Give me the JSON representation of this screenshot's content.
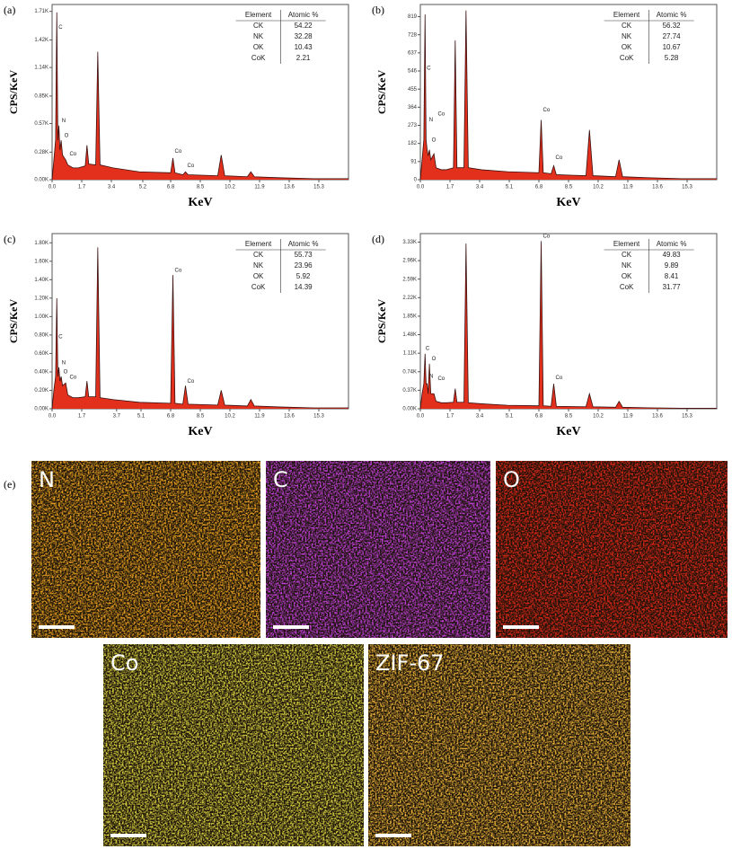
{
  "chart_data": [
    {
      "type": "area",
      "label": "(a)",
      "x_label": "KeV",
      "y_label": "CPS/KeV",
      "xlim": [
        0,
        17
      ],
      "xticks": [
        {
          "value": 0,
          "label": "0.0"
        },
        1.7,
        3.4,
        5.2,
        6.8,
        8.5,
        10.2,
        11.9,
        13.6,
        15.3
      ],
      "ylim": [
        0,
        1.78
      ],
      "yticks": [
        {
          "value": 0,
          "label": "0.00K"
        },
        {
          "value": 0.28,
          "label": "0.28K"
        },
        {
          "value": 0.57,
          "label": "0.57K"
        },
        {
          "value": 0.85,
          "label": "0.85K"
        },
        {
          "value": 1.14,
          "label": "1.14K"
        },
        {
          "value": 1.42,
          "label": "1.42K"
        },
        {
          "value": 1.71,
          "label": "1.71K"
        }
      ],
      "x": [
        0,
        0.1,
        0.2,
        0.27,
        0.33,
        0.39,
        0.45,
        0.52,
        0.6,
        0.78,
        0.9,
        1.2,
        1.5,
        1.9,
        2.0,
        2.1,
        2.5,
        2.62,
        2.75,
        3.5,
        5.0,
        6.8,
        6.93,
        7.05,
        7.5,
        7.65,
        7.8,
        9.5,
        9.7,
        9.9,
        11.2,
        11.4,
        11.6,
        13.0,
        15.0,
        17.0
      ],
      "series": [
        {
          "color": "#e2301c",
          "values": [
            0,
            0.2,
            0.4,
            1.7,
            0.4,
            0.55,
            0.3,
            0.4,
            0.25,
            0.2,
            0.15,
            0.12,
            0.12,
            0.14,
            0.35,
            0.16,
            0.15,
            1.3,
            0.15,
            0.12,
            0.08,
            0.07,
            0.22,
            0.07,
            0.05,
            0.08,
            0.05,
            0.04,
            0.25,
            0.04,
            0.03,
            0.08,
            0.03,
            0.02,
            0.01,
            0.01
          ]
        }
      ],
      "annotations": [
        {
          "text": "C",
          "x": 0.27,
          "y": 1.55
        },
        {
          "text": "N",
          "x": 0.45,
          "y": 0.6
        },
        {
          "text": "O",
          "x": 0.6,
          "y": 0.45
        },
        {
          "text": "Co",
          "x": 0.9,
          "y": 0.26
        },
        {
          "text": "Co",
          "x": 6.93,
          "y": 0.29
        },
        {
          "text": "Co",
          "x": 7.65,
          "y": 0.14
        }
      ],
      "table": {
        "columns": [
          "Element",
          "Atomic %"
        ],
        "rows": [
          [
            "CK",
            54.22
          ],
          [
            "NK",
            32.28
          ],
          [
            "OK",
            10.43
          ],
          [
            "CoK",
            2.21
          ]
        ]
      }
    },
    {
      "type": "area",
      "label": "(b)",
      "x_label": "KeV",
      "y_label": "CPS/KeV",
      "xlim": [
        0,
        17
      ],
      "xticks": [
        {
          "value": 0,
          "label": "0.0"
        },
        1.7,
        3.4,
        5.1,
        6.8,
        8.5,
        10.2,
        11.9,
        13.6,
        15.3
      ],
      "ylim": [
        0,
        880
      ],
      "yticks": [
        0,
        91,
        182,
        273,
        364,
        455,
        546,
        637,
        728,
        819
      ],
      "x": [
        0,
        0.1,
        0.2,
        0.27,
        0.33,
        0.39,
        0.45,
        0.52,
        0.6,
        0.78,
        0.9,
        1.2,
        1.5,
        1.9,
        2.0,
        2.1,
        2.5,
        2.62,
        2.75,
        3.5,
        5.0,
        6.8,
        6.93,
        7.05,
        7.5,
        7.65,
        7.8,
        9.5,
        9.7,
        9.9,
        11.2,
        11.4,
        11.6,
        13.0,
        15.0,
        17.0
      ],
      "series": [
        {
          "color": "#e2301c",
          "values": [
            0,
            100,
            200,
            830,
            200,
            150,
            120,
            150,
            100,
            130,
            60,
            50,
            50,
            60,
            700,
            60,
            60,
            850,
            60,
            50,
            40,
            35,
            300,
            35,
            30,
            70,
            25,
            20,
            250,
            20,
            15,
            100,
            15,
            10,
            5,
            5
          ]
        }
      ],
      "annotations": [
        {
          "text": "C",
          "x": 0.27,
          "y": 560
        },
        {
          "text": "N",
          "x": 0.4,
          "y": 300
        },
        {
          "text": "O",
          "x": 0.55,
          "y": 200
        },
        {
          "text": "Co",
          "x": 0.9,
          "y": 330
        },
        {
          "text": "Co",
          "x": 6.93,
          "y": 350
        },
        {
          "text": "Co",
          "x": 7.65,
          "y": 110
        }
      ],
      "table": {
        "columns": [
          "Element",
          "Atomic %"
        ],
        "rows": [
          [
            "CK",
            56.32
          ],
          [
            "NK",
            27.74
          ],
          [
            "OK",
            10.67
          ],
          [
            "CoK",
            5.28
          ]
        ]
      }
    },
    {
      "type": "area",
      "label": "(c)",
      "x_label": "KeV",
      "y_label": "CPS/KeV",
      "xlim": [
        0,
        17
      ],
      "xticks": [
        {
          "value": 0,
          "label": "0.0"
        },
        1.7,
        3.7,
        5.1,
        6.8,
        8.5,
        10.2,
        11.9,
        13.6,
        15.3
      ],
      "ylim": [
        0,
        1.9
      ],
      "yticks": [
        {
          "value": 0,
          "label": "0.00K"
        },
        {
          "value": 0.2,
          "label": "0.20K"
        },
        {
          "value": 0.4,
          "label": "0.40K"
        },
        {
          "value": 0.6,
          "label": "0.60K"
        },
        {
          "value": 0.8,
          "label": "0.80K"
        },
        {
          "value": 1,
          "label": "1.00K"
        },
        {
          "value": 1.2,
          "label": "1.20K"
        },
        {
          "value": 1.4,
          "label": "1.40K"
        },
        {
          "value": 1.6,
          "label": "1.60K"
        },
        {
          "value": 1.8,
          "label": "1.80K"
        }
      ],
      "x": [
        0,
        0.1,
        0.2,
        0.27,
        0.33,
        0.39,
        0.45,
        0.52,
        0.6,
        0.78,
        0.9,
        1.2,
        1.5,
        1.9,
        2.0,
        2.1,
        2.5,
        2.62,
        2.75,
        3.5,
        5.0,
        6.8,
        6.93,
        7.05,
        7.5,
        7.65,
        7.8,
        9.5,
        9.7,
        9.9,
        11.2,
        11.4,
        11.6,
        13.0,
        15.0,
        17.0
      ],
      "series": [
        {
          "color": "#e2301c",
          "values": [
            0,
            0.2,
            0.35,
            1.2,
            0.35,
            0.45,
            0.3,
            0.35,
            0.25,
            0.28,
            0.15,
            0.12,
            0.12,
            0.13,
            0.3,
            0.13,
            0.13,
            1.75,
            0.12,
            0.1,
            0.07,
            0.06,
            1.45,
            0.06,
            0.05,
            0.25,
            0.05,
            0.04,
            0.2,
            0.04,
            0.03,
            0.1,
            0.03,
            0.02,
            0.01,
            0.01
          ]
        }
      ],
      "annotations": [
        {
          "text": "C",
          "x": 0.27,
          "y": 0.78
        },
        {
          "text": "N",
          "x": 0.45,
          "y": 0.5
        },
        {
          "text": "O",
          "x": 0.55,
          "y": 0.4
        },
        {
          "text": "Co",
          "x": 0.9,
          "y": 0.34
        },
        {
          "text": "Co",
          "x": 6.93,
          "y": 1.5
        },
        {
          "text": "Co",
          "x": 7.65,
          "y": 0.3
        }
      ],
      "table": {
        "columns": [
          "Element",
          "Atomic %"
        ],
        "rows": [
          [
            "CK",
            55.73
          ],
          [
            "NK",
            23.96
          ],
          [
            "OK",
            5.92
          ],
          [
            "CoK",
            14.39
          ]
        ]
      }
    },
    {
      "type": "area",
      "label": "(d)",
      "x_label": "KeV",
      "y_label": "CPS/KeV",
      "xlim": [
        0,
        17
      ],
      "xticks": [
        {
          "value": 0,
          "label": "0.0"
        },
        1.7,
        3.4,
        5.1,
        6.8,
        8.5,
        10.2,
        11.9,
        13.6,
        15.3
      ],
      "ylim": [
        0,
        3.5
      ],
      "yticks": [
        {
          "value": 0,
          "label": "0.00K"
        },
        {
          "value": 0.37,
          "label": "0.37K"
        },
        {
          "value": 0.74,
          "label": "0.74K"
        },
        {
          "value": 1.11,
          "label": "1.11K"
        },
        {
          "value": 1.48,
          "label": "1.48K"
        },
        {
          "value": 1.85,
          "label": "1.85K"
        },
        {
          "value": 2.22,
          "label": "2.22K"
        },
        {
          "value": 2.59,
          "label": "2.59K"
        },
        {
          "value": 2.96,
          "label": "2.96K"
        },
        {
          "value": 3.33,
          "label": "3.33K"
        }
      ],
      "x": [
        0,
        0.1,
        0.2,
        0.27,
        0.33,
        0.39,
        0.45,
        0.52,
        0.6,
        0.78,
        0.9,
        1.2,
        1.5,
        1.9,
        2.0,
        2.1,
        2.5,
        2.62,
        2.75,
        3.5,
        5.0,
        6.8,
        6.93,
        7.05,
        7.5,
        7.65,
        7.8,
        9.5,
        9.7,
        9.9,
        11.2,
        11.4,
        11.6,
        13.0,
        15.0,
        17.0
      ],
      "series": [
        {
          "color": "#e2301c",
          "values": [
            0,
            0.3,
            0.5,
            1.1,
            0.5,
            0.5,
            0.3,
            0.9,
            0.3,
            0.3,
            0.15,
            0.12,
            0.12,
            0.13,
            0.4,
            0.13,
            0.13,
            3.3,
            0.12,
            0.1,
            0.07,
            0.06,
            3.35,
            0.06,
            0.05,
            0.5,
            0.05,
            0.04,
            0.3,
            0.04,
            0.03,
            0.15,
            0.03,
            0.02,
            0.01,
            0.01
          ]
        }
      ],
      "annotations": [
        {
          "text": "C",
          "x": 0.2,
          "y": 1.2
        },
        {
          "text": "N",
          "x": 0.42,
          "y": 0.65
        },
        {
          "text": "O",
          "x": 0.55,
          "y": 1.0
        },
        {
          "text": "Co",
          "x": 0.9,
          "y": 0.6
        },
        {
          "text": "Co",
          "x": 6.93,
          "y": 3.45
        },
        {
          "text": "Co",
          "x": 7.65,
          "y": 0.62
        }
      ],
      "table": {
        "columns": [
          "Element",
          "Atomic %"
        ],
        "rows": [
          [
            "CK",
            49.83
          ],
          [
            "NK",
            9.89
          ],
          [
            "OK",
            8.41
          ],
          [
            "CoK",
            31.77
          ]
        ]
      }
    }
  ],
  "maps": {
    "label": "(e)",
    "tiles": [
      {
        "name": "N",
        "color": "#e8a020"
      },
      {
        "name": "C",
        "color": "#c040d8"
      },
      {
        "name": "O",
        "color": "#e02818"
      },
      {
        "name": "Co",
        "color": "#d8d040"
      },
      {
        "name": "ZIF-67",
        "color": "#e8b038"
      }
    ]
  }
}
